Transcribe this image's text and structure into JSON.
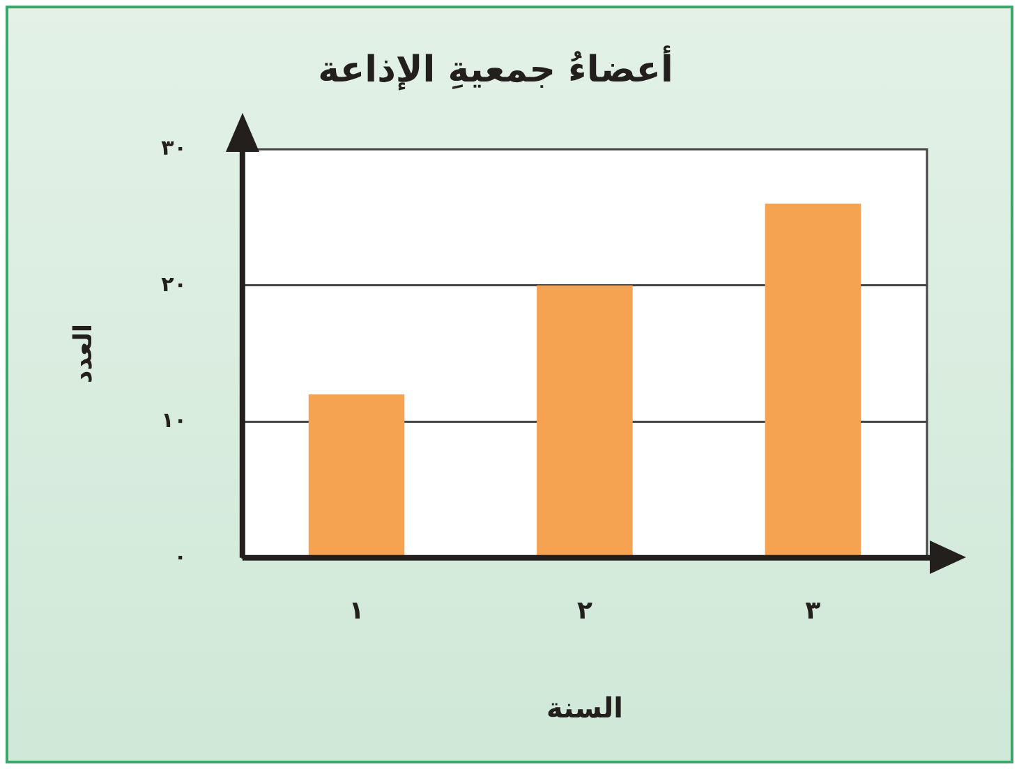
{
  "chart_data": {
    "type": "bar",
    "title": "أعضاءُ جمعيةِ الإذاعة",
    "xlabel": "السنة",
    "ylabel": "العدد",
    "categories": [
      "١",
      "٢",
      "٣"
    ],
    "values": [
      12,
      20,
      26
    ],
    "color": "#f5a350",
    "ylim": [
      0,
      30
    ],
    "yticks": [
      {
        "value": 0,
        "label": "٠"
      },
      {
        "value": 10,
        "label": "١٠"
      },
      {
        "value": 20,
        "label": "٢٠"
      },
      {
        "value": 30,
        "label": "٣٠"
      }
    ],
    "grid": "y"
  }
}
